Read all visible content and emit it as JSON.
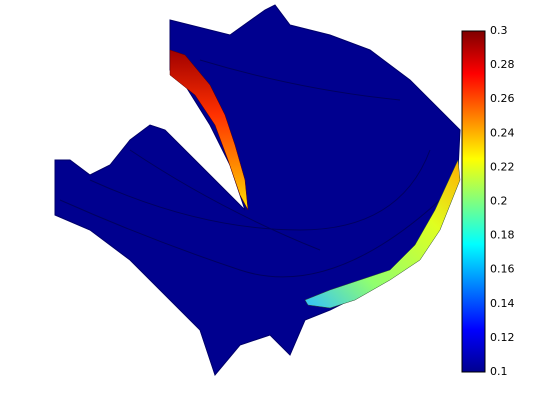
{
  "chart_data": {
    "type": "surface",
    "colormap": "jet",
    "clim": [
      0.1,
      0.3
    ],
    "cticks": [
      0.1,
      0.12,
      0.14,
      0.16,
      0.18,
      0.2,
      0.22,
      0.24,
      0.26,
      0.28,
      0.3
    ]
  }
}
